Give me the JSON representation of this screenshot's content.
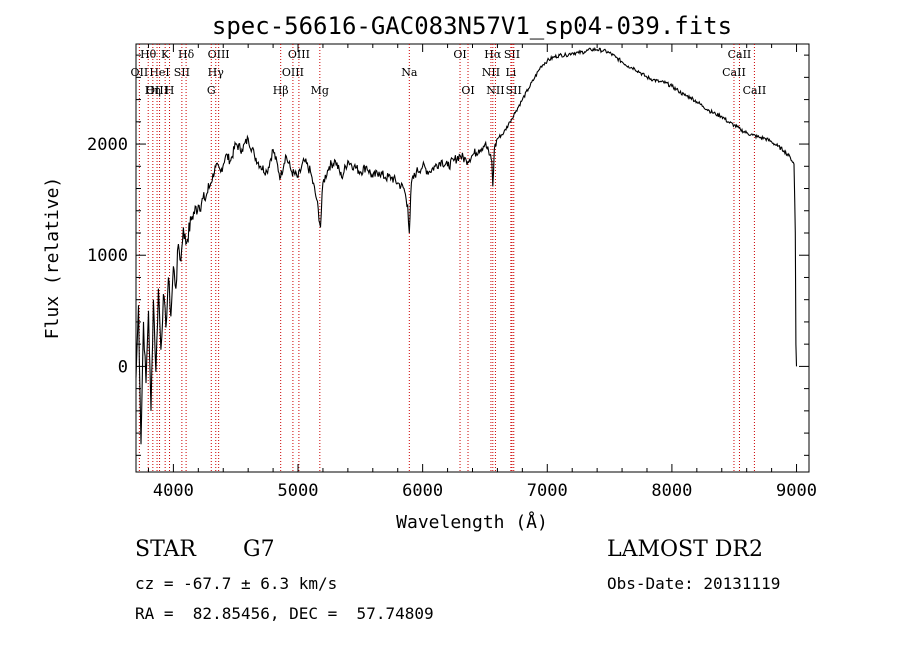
{
  "chart_data": {
    "type": "line",
    "title": "spec-56616-GAC083N57V1_sp04-039.fits",
    "xlabel": "Wavelength (Å)",
    "ylabel": "Flux (relative)",
    "xlim": [
      3700,
      9100
    ],
    "ylim": [
      -950,
      2900
    ],
    "x_ticks": [
      4000,
      5000,
      6000,
      7000,
      8000,
      9000
    ],
    "y_ticks": [
      0,
      1000,
      2000
    ],
    "grid": false,
    "series": [
      {
        "x": [
          3700,
          3720,
          3740,
          3760,
          3780,
          3800,
          3820,
          3840,
          3860,
          3880,
          3900,
          3920,
          3940,
          3960,
          3980,
          4000,
          4020,
          4040,
          4060,
          4080,
          4100,
          4150,
          4200,
          4250,
          4300,
          4340,
          4380,
          4420,
          4460,
          4500,
          4550,
          4600,
          4650,
          4700,
          4750,
          4800,
          4860,
          4900,
          4950,
          5000,
          5050,
          5100,
          5150,
          5180,
          5200,
          5250,
          5300,
          5350,
          5400,
          5450,
          5500,
          5550,
          5600,
          5650,
          5700,
          5750,
          5800,
          5850,
          5880,
          5893,
          5910,
          5950,
          6000,
          6050,
          6100,
          6150,
          6200,
          6250,
          6300,
          6350,
          6400,
          6450,
          6500,
          6540,
          6555,
          6563,
          6575,
          6600,
          6650,
          6700,
          6750,
          6800,
          6850,
          6900,
          6950,
          7000,
          7050,
          7100,
          7150,
          7200,
          7250,
          7300,
          7350,
          7400,
          7450,
          7500,
          7550,
          7600,
          7650,
          7700,
          7750,
          7800,
          7850,
          7900,
          7950,
          8000,
          8050,
          8100,
          8150,
          8200,
          8250,
          8300,
          8350,
          8400,
          8450,
          8500,
          8550,
          8600,
          8650,
          8700,
          8750,
          8800,
          8850,
          8900,
          8950,
          8980,
          8990,
          8995,
          9000
        ],
        "y": [
          -100,
          550,
          -700,
          400,
          -150,
          500,
          -400,
          600,
          -50,
          700,
          150,
          650,
          350,
          800,
          450,
          900,
          700,
          1100,
          950,
          1250,
          1100,
          1350,
          1450,
          1500,
          1650,
          1800,
          1750,
          1900,
          1850,
          2000,
          1950,
          2050,
          1900,
          1800,
          1750,
          1950,
          1700,
          1900,
          1750,
          1700,
          1850,
          1750,
          1500,
          1250,
          1650,
          1800,
          1850,
          1700,
          1850,
          1800,
          1750,
          1800,
          1700,
          1750,
          1700,
          1700,
          1650,
          1600,
          1450,
          1200,
          1650,
          1750,
          1800,
          1750,
          1800,
          1850,
          1800,
          1850,
          1900,
          1850,
          1900,
          1950,
          2000,
          1900,
          1850,
          1620,
          1950,
          2050,
          2100,
          2200,
          2300,
          2400,
          2500,
          2600,
          2700,
          2750,
          2780,
          2800,
          2800,
          2820,
          2820,
          2830,
          2850,
          2850,
          2840,
          2820,
          2780,
          2740,
          2700,
          2680,
          2640,
          2600,
          2580,
          2560,
          2550,
          2520,
          2480,
          2440,
          2420,
          2380,
          2340,
          2300,
          2270,
          2250,
          2200,
          2170,
          2130,
          2100,
          2080,
          2060,
          2050,
          2020,
          1980,
          1940,
          1880,
          1820,
          1200,
          200,
          0
        ]
      }
    ],
    "line_marks": [
      {
        "label": "Hθ",
        "x": 3798,
        "row": 0
      },
      {
        "label": "K",
        "x": 3934,
        "row": 0
      },
      {
        "label": "Hδ",
        "x": 4102,
        "row": 0
      },
      {
        "label": "OIII",
        "x": 4363,
        "row": 0
      },
      {
        "label": "OIII",
        "x": 5007,
        "row": 0
      },
      {
        "label": "OI",
        "x": 6300,
        "row": 0
      },
      {
        "label": "Hα",
        "x": 6563,
        "row": 0
      },
      {
        "label": "SII",
        "x": 6717,
        "row": 0
      },
      {
        "label": "CaII",
        "x": 8542,
        "row": 0
      },
      {
        "label": "OII",
        "x": 3727,
        "row": 1
      },
      {
        "label": "HeI",
        "x": 3889,
        "row": 1
      },
      {
        "label": "SII",
        "x": 4068,
        "row": 1
      },
      {
        "label": "Hγ",
        "x": 4340,
        "row": 1
      },
      {
        "label": "OIII",
        "x": 4959,
        "row": 1
      },
      {
        "label": "Na",
        "x": 5893,
        "row": 1
      },
      {
        "label": "NII",
        "x": 6548,
        "row": 1
      },
      {
        "label": "Li",
        "x": 6708,
        "row": 1
      },
      {
        "label": "CaII",
        "x": 8498,
        "row": 1
      },
      {
        "label": "OIII",
        "x": 3869,
        "row": 2
      },
      {
        "label": "Hη",
        "x": 3835,
        "row": 2
      },
      {
        "label": "H",
        "x": 3969,
        "row": 2
      },
      {
        "label": "G",
        "x": 4304,
        "row": 2
      },
      {
        "label": "Hβ",
        "x": 4861,
        "row": 2
      },
      {
        "label": "Mg",
        "x": 5175,
        "row": 2
      },
      {
        "label": "OI",
        "x": 6364,
        "row": 2
      },
      {
        "label": "NII",
        "x": 6584,
        "row": 2
      },
      {
        "label": "SII",
        "x": 6731,
        "row": 2
      },
      {
        "label": "CaII",
        "x": 8662,
        "row": 2
      }
    ]
  },
  "info": {
    "object_class": "STAR",
    "subclass": "G7",
    "survey": "LAMOST DR2",
    "redshift": "cz = -67.7 ± 6.3 km/s",
    "obs_date": "Obs-Date: 20131119",
    "coords": "RA =  82.85456, DEC =  57.74809"
  },
  "colors": {
    "spectrum": "#000000",
    "line_marks": "#cc0000",
    "axes": "#000000"
  }
}
